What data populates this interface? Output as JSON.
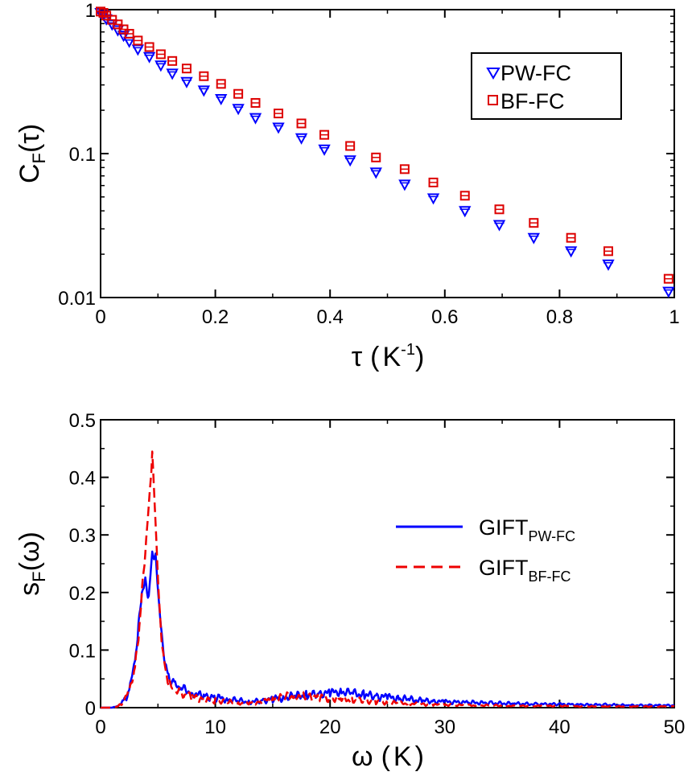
{
  "chart_data": [
    {
      "type": "scatter",
      "yscale": "log",
      "xlabel": "τ",
      "xlabel_unit": "K",
      "xlabel_unit_exp": "-1",
      "ylabel": "C",
      "ylabel_sub": "F",
      "ylabel_arg": "τ",
      "xlim": [
        0,
        1
      ],
      "ylim": [
        0.01,
        1
      ],
      "xticks": [
        0,
        0.2,
        0.4,
        0.6,
        0.8,
        1
      ],
      "xtick_labels": [
        "0",
        "0.2",
        "0.4",
        "0.6",
        "0.8",
        "1"
      ],
      "yticks": [
        0.01,
        0.1,
        1
      ],
      "ytick_labels": [
        "0.01",
        "0.1",
        "1"
      ],
      "legend_position": "top-right",
      "series": [
        {
          "name": "PW-FC",
          "marker": "triangle-down",
          "color": "#0000ff",
          "x": [
            0.0,
            0.005,
            0.01,
            0.02,
            0.03,
            0.04,
            0.05,
            0.065,
            0.085,
            0.105,
            0.125,
            0.15,
            0.18,
            0.21,
            0.24,
            0.27,
            0.31,
            0.35,
            0.39,
            0.435,
            0.48,
            0.53,
            0.58,
            0.635,
            0.695,
            0.755,
            0.82,
            0.885,
            0.99
          ],
          "y": [
            0.95,
            0.92,
            0.86,
            0.79,
            0.72,
            0.66,
            0.6,
            0.53,
            0.47,
            0.41,
            0.36,
            0.315,
            0.275,
            0.24,
            0.205,
            0.177,
            0.152,
            0.128,
            0.107,
            0.09,
            0.074,
            0.061,
            0.049,
            0.04,
            0.032,
            0.026,
            0.021,
            0.017,
            0.011
          ]
        },
        {
          "name": "BF-FC",
          "marker": "square",
          "color": "#dd0000",
          "x": [
            0.0,
            0.005,
            0.01,
            0.02,
            0.03,
            0.04,
            0.05,
            0.065,
            0.085,
            0.105,
            0.125,
            0.15,
            0.18,
            0.21,
            0.24,
            0.27,
            0.31,
            0.35,
            0.39,
            0.435,
            0.48,
            0.53,
            0.58,
            0.635,
            0.695,
            0.755,
            0.82,
            0.885,
            0.99
          ],
          "y": [
            0.97,
            0.95,
            0.91,
            0.85,
            0.79,
            0.73,
            0.68,
            0.61,
            0.55,
            0.49,
            0.44,
            0.39,
            0.345,
            0.305,
            0.26,
            0.225,
            0.19,
            0.162,
            0.135,
            0.113,
            0.094,
            0.078,
            0.063,
            0.051,
            0.041,
            0.033,
            0.026,
            0.021,
            0.0135
          ]
        }
      ]
    },
    {
      "type": "line",
      "xlabel": "ω",
      "xlabel_unit": "K",
      "ylabel": "s",
      "ylabel_sub": "F",
      "ylabel_arg": "ω",
      "xlim": [
        0,
        50
      ],
      "ylim": [
        0,
        0.5
      ],
      "xticks": [
        0,
        10,
        20,
        30,
        40,
        50
      ],
      "xtick_labels": [
        "0",
        "10",
        "20",
        "30",
        "40",
        "50"
      ],
      "yticks": [
        0,
        0.1,
        0.2,
        0.3,
        0.4,
        0.5
      ],
      "ytick_labels": [
        "0",
        "0.1",
        "0.2",
        "0.3",
        "0.4",
        "0.5"
      ],
      "legend_position": "center-right",
      "series": [
        {
          "name": "GIFT",
          "name_sub": "PW-FC",
          "style": "solid",
          "color": "#0000ff",
          "x": [
            0,
            1,
            1.5,
            2,
            2.5,
            3,
            3.3,
            3.6,
            3.9,
            4.2,
            4.5,
            4.8,
            5.1,
            5.4,
            5.7,
            6.0,
            6.5,
            7,
            8,
            9,
            10,
            11,
            12,
            13,
            14,
            15,
            16,
            17,
            18,
            19,
            20,
            21,
            22,
            23,
            24,
            25,
            26,
            27,
            28,
            29,
            30,
            32,
            34,
            36,
            38,
            40,
            42,
            44,
            46,
            48,
            50
          ],
          "y": [
            0,
            0.0,
            0.003,
            0.01,
            0.03,
            0.08,
            0.14,
            0.2,
            0.22,
            0.19,
            0.27,
            0.26,
            0.18,
            0.11,
            0.07,
            0.05,
            0.04,
            0.035,
            0.025,
            0.02,
            0.018,
            0.015,
            0.012,
            0.01,
            0.012,
            0.015,
            0.018,
            0.02,
            0.022,
            0.024,
            0.026,
            0.028,
            0.025,
            0.022,
            0.02,
            0.018,
            0.016,
            0.014,
            0.012,
            0.011,
            0.01,
            0.009,
            0.008,
            0.007,
            0.006,
            0.006,
            0.005,
            0.005,
            0.004,
            0.004,
            0.004
          ]
        },
        {
          "name": "GIFT",
          "name_sub": "BF-FC",
          "style": "dashed",
          "color": "#ee0000",
          "x": [
            0,
            1,
            1.5,
            2,
            2.5,
            3,
            3.3,
            3.6,
            3.9,
            4.2,
            4.5,
            4.8,
            5.1,
            5.4,
            5.7,
            6.0,
            6.5,
            7,
            8,
            9,
            10,
            11,
            12,
            13,
            14,
            15,
            16,
            17,
            18,
            19,
            20,
            21,
            22,
            23,
            24,
            25,
            26,
            27,
            28,
            29,
            30,
            32,
            34,
            36,
            38,
            40,
            42,
            44,
            46,
            48,
            50
          ],
          "y": [
            0,
            0.0,
            0.002,
            0.01,
            0.03,
            0.07,
            0.12,
            0.2,
            0.27,
            0.35,
            0.44,
            0.32,
            0.18,
            0.1,
            0.06,
            0.04,
            0.03,
            0.025,
            0.018,
            0.015,
            0.012,
            0.01,
            0.008,
            0.008,
            0.01,
            0.015,
            0.018,
            0.022,
            0.02,
            0.018,
            0.016,
            0.015,
            0.013,
            0.012,
            0.01,
            0.009,
            0.008,
            0.007,
            0.006,
            0.005,
            0.005,
            0.004,
            0.004,
            0.003,
            0.003,
            0.003,
            0.002,
            0.002,
            0.002,
            0.002,
            0.002
          ]
        }
      ]
    }
  ]
}
